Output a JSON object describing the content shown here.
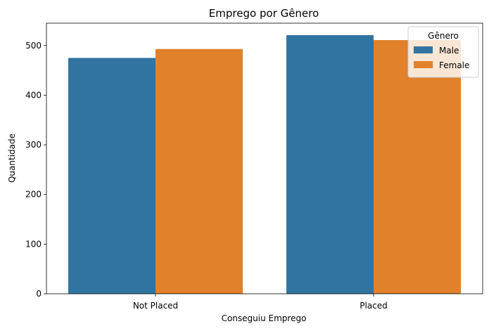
{
  "chart_data": {
    "type": "bar",
    "title": "Emprego por Gênero",
    "xlabel": "Conseguiu Emprego",
    "ylabel": "Quantidade",
    "categories": [
      "Not Placed",
      "Placed"
    ],
    "series": [
      {
        "name": "Male",
        "values": [
          475,
          521
        ],
        "color": "#3274a1"
      },
      {
        "name": "Female",
        "values": [
          493,
          511
        ],
        "color": "#e1812c"
      }
    ],
    "ylim": [
      0,
      545
    ],
    "yticks": [
      "0",
      "100",
      "200",
      "300",
      "400",
      "500"
    ],
    "legend": {
      "title": "Gênero",
      "placement": "top-right"
    },
    "grid": false
  }
}
